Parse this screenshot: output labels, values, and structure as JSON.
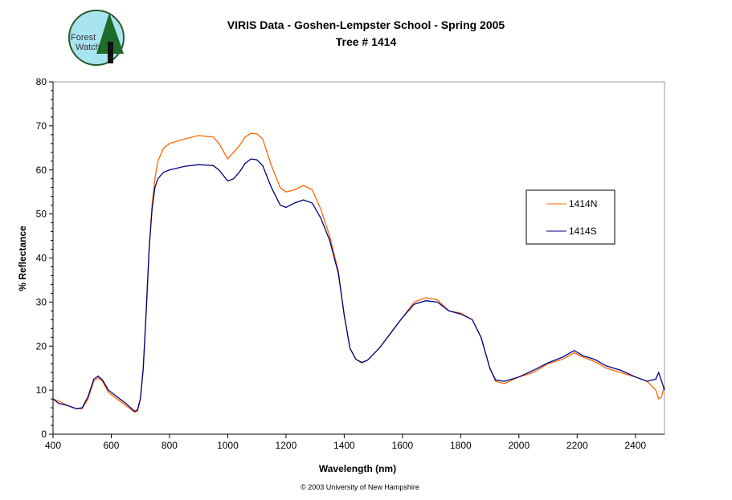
{
  "logo": {
    "text": "Forest Watch",
    "colors": {
      "sky": "#a8e4f0",
      "tree": "#1e6b2a"
    }
  },
  "chart_data": {
    "type": "line",
    "title": "VIRIS Data - Goshen-Lempster School - Spring 2005",
    "subtitle": "Tree # 1414",
    "xlabel": "Wavelength (nm)",
    "ylabel": "% Reflectance",
    "xlim": [
      400,
      2500
    ],
    "ylim": [
      0,
      80
    ],
    "xticks": [
      400,
      600,
      800,
      1000,
      1200,
      1400,
      1600,
      1800,
      2000,
      2200,
      2400
    ],
    "yticks": [
      0,
      10,
      20,
      30,
      40,
      50,
      60,
      70,
      80
    ],
    "grid": false,
    "legend": "right",
    "footer": "© 2003 University of New Hampshire",
    "x": [
      400,
      420,
      450,
      480,
      500,
      520,
      540,
      555,
      570,
      590,
      620,
      650,
      680,
      690,
      700,
      710,
      720,
      730,
      740,
      750,
      760,
      780,
      800,
      850,
      900,
      950,
      970,
      1000,
      1020,
      1040,
      1060,
      1080,
      1100,
      1120,
      1150,
      1180,
      1200,
      1230,
      1260,
      1290,
      1320,
      1350,
      1380,
      1400,
      1420,
      1440,
      1460,
      1480,
      1520,
      1560,
      1600,
      1640,
      1680,
      1720,
      1760,
      1800,
      1840,
      1870,
      1900,
      1920,
      1950,
      2000,
      2050,
      2100,
      2150,
      2190,
      2220,
      2260,
      2300,
      2350,
      2400,
      2440,
      2470,
      2480,
      2490,
      2500
    ],
    "series": [
      {
        "name": "1414N",
        "color": "#ff6600",
        "values": [
          8,
          7.5,
          6.5,
          5.8,
          5.8,
          8,
          12,
          12.8,
          12,
          9.5,
          8,
          6.5,
          5,
          5.2,
          8,
          15,
          28,
          42,
          52,
          58,
          62,
          65,
          66,
          67,
          67.8,
          67.5,
          66,
          62.5,
          64,
          65.5,
          67.5,
          68.3,
          68.2,
          67,
          61,
          56,
          55,
          55.5,
          56.5,
          55.5,
          51,
          45,
          37,
          27,
          19.5,
          17,
          16.2,
          16.8,
          19.5,
          23,
          26.5,
          30,
          31,
          30.5,
          28,
          27.5,
          26,
          22,
          15,
          12,
          11.5,
          13,
          14,
          16,
          17,
          18.5,
          17.5,
          16.5,
          15,
          14,
          13,
          12,
          10,
          8,
          8.5,
          11
        ]
      },
      {
        "name": "1414S",
        "color": "#000080",
        "values": [
          8,
          7,
          6.5,
          5.8,
          6,
          8.5,
          12.5,
          13.2,
          12.3,
          10,
          8.5,
          7,
          5.2,
          5.5,
          8,
          15,
          28,
          42,
          51,
          56,
          58,
          59.5,
          60,
          60.8,
          61.2,
          61,
          60,
          57.5,
          58,
          59.5,
          61.5,
          62.5,
          62.3,
          61,
          56,
          52,
          51.5,
          52.5,
          53.2,
          52.5,
          49,
          44,
          36.5,
          27,
          19.5,
          17,
          16.3,
          16.8,
          19.5,
          23,
          26.5,
          29.5,
          30.3,
          30,
          28,
          27.3,
          26,
          22,
          15,
          12.3,
          12,
          13,
          14.5,
          16.2,
          17.5,
          19,
          17.8,
          17,
          15.5,
          14.5,
          13,
          12,
          12.5,
          14,
          12,
          10
        ]
      }
    ]
  }
}
